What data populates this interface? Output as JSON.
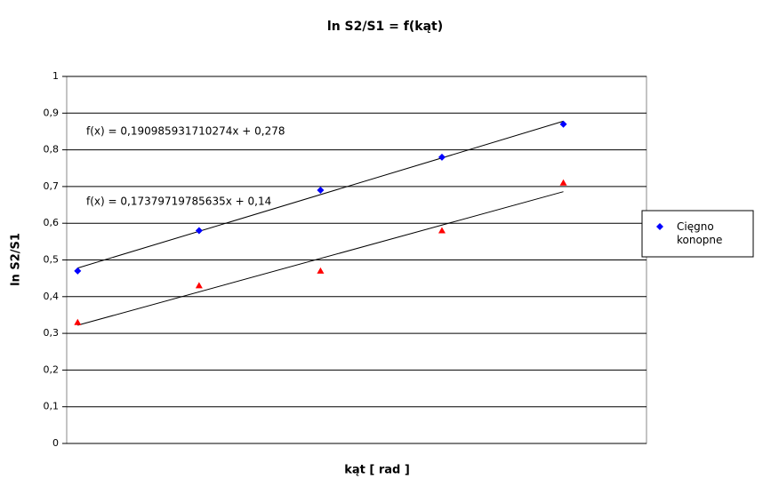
{
  "chart_data": {
    "type": "scatter",
    "title": "ln S2/S1 = f(kąt)",
    "x_label": "kąt [ rad ]",
    "y_label": "ln S2/S1",
    "x": [
      1.0472,
      1.5708,
      2.0944,
      2.618,
      3.1416
    ],
    "series": [
      {
        "name": "Cięgno konopne",
        "color": "#0000ff",
        "marker": "diamond",
        "values": [
          0.47,
          0.58,
          0.69,
          0.78,
          0.87
        ],
        "trendline": {
          "slope": 0.190985931710274,
          "intercept": 0.278,
          "label": "f(x) = 0,190985931710274x + 0,278"
        }
      },
      {
        "color": "#ff0000",
        "marker": "triangle",
        "values": [
          0.33,
          0.43,
          0.47,
          0.58,
          0.71
        ],
        "trendline": {
          "slope": 0.17379719785635,
          "intercept": 0.14,
          "label": "f(x) = 0,17379719785635x + 0,14"
        }
      }
    ],
    "xlim": [
      1.0,
      3.5
    ],
    "ylim": [
      0,
      1
    ],
    "yticks": [
      0,
      {
        "value": 0.1,
        "label": "0,1"
      },
      {
        "value": 0.2,
        "label": "0,2"
      },
      {
        "value": 0.3,
        "label": "0,3"
      },
      {
        "value": 0.4,
        "label": "0,4"
      },
      {
        "value": 0.5,
        "label": "0,5"
      },
      {
        "value": 0.6,
        "label": "0,6"
      },
      {
        "value": 0.7,
        "label": "0,7"
      },
      {
        "value": 0.8,
        "label": "0,8"
      },
      {
        "value": 0.9,
        "label": "0,9"
      },
      1
    ],
    "grid": true,
    "legend": "right"
  }
}
